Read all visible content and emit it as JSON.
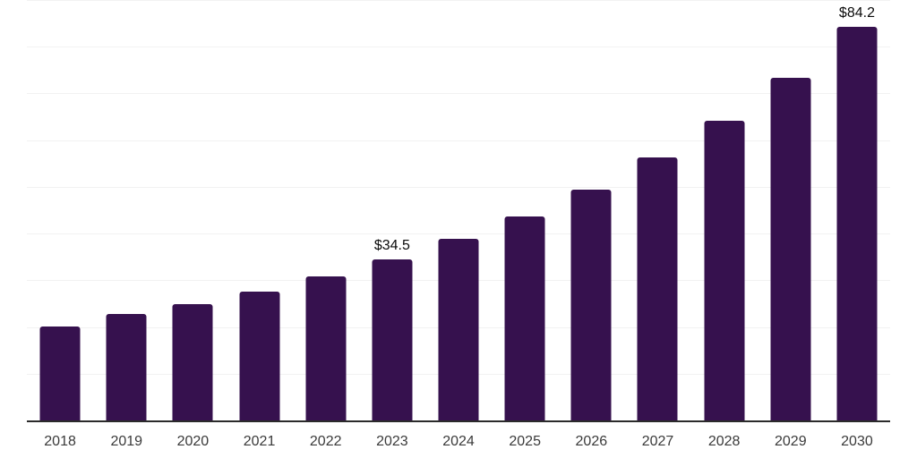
{
  "chart": {
    "colors": {
      "background": "#ffffff",
      "bar": "#36114e",
      "grid": "#f2f2f2",
      "axis": "#2b2b2b",
      "tick_label": "#3a3a3a",
      "data_label": "#0a0a0a"
    }
  },
  "chart_data": {
    "type": "bar",
    "title": "",
    "xlabel": "",
    "ylabel": "",
    "categories": [
      "2018",
      "2019",
      "2020",
      "2021",
      "2022",
      "2023",
      "2024",
      "2025",
      "2026",
      "2027",
      "2028",
      "2029",
      "2030"
    ],
    "values": [
      20.1,
      22.8,
      24.9,
      27.6,
      30.8,
      34.5,
      38.9,
      43.7,
      49.5,
      56.3,
      64.2,
      73.4,
      84.2
    ],
    "value_prefix": "$",
    "data_labels": [
      {
        "category": "2023",
        "text": "$34.5"
      },
      {
        "category": "2030",
        "text": "$84.2"
      }
    ],
    "ylim": [
      0,
      90
    ],
    "grid_step": 10,
    "grid": "horizontal-only",
    "y_axis_tick_labels_visible": false,
    "legend_position": "none"
  }
}
